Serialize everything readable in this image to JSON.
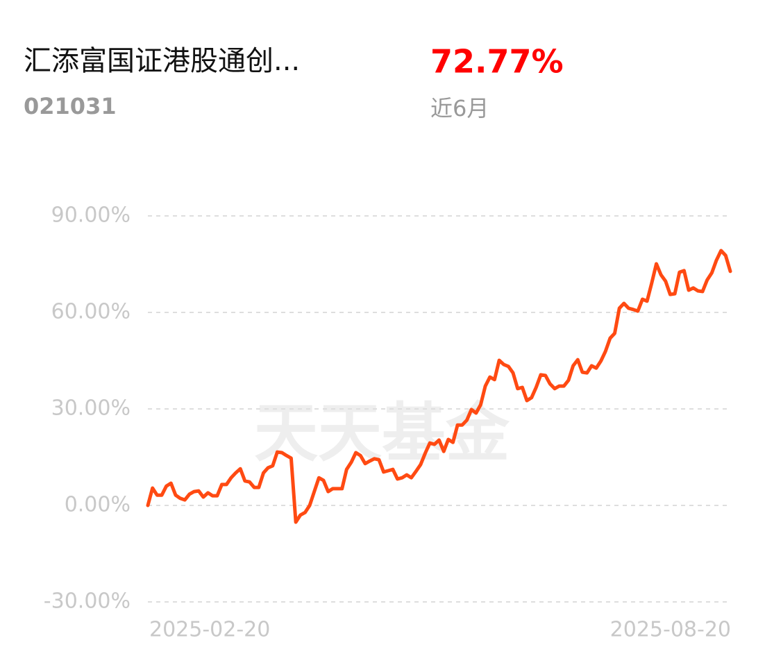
{
  "header": {
    "fund_name": "汇添富国证港股通创...",
    "fund_code": "021031",
    "return_value": "72.77%",
    "period": "近6月"
  },
  "chart_data": {
    "type": "line",
    "watermark": "天天基金",
    "categories": [
      "2025-02-20",
      null,
      null,
      null,
      null,
      null,
      null,
      null,
      null,
      null,
      null,
      null,
      null,
      null,
      null,
      null,
      null,
      null,
      null,
      null,
      null,
      null,
      null,
      null,
      null,
      null,
      null,
      null,
      null,
      null,
      null,
      null,
      null,
      null,
      null,
      null,
      null,
      null,
      null,
      null,
      null,
      null,
      null,
      null,
      null,
      null,
      null,
      null,
      null,
      null,
      null,
      null,
      null,
      null,
      null,
      null,
      null,
      null,
      null,
      null,
      null,
      null,
      null,
      null,
      null,
      null,
      null,
      null,
      null,
      null,
      null,
      null,
      null,
      null,
      null,
      null,
      null,
      null,
      null,
      null,
      null,
      null,
      null,
      null,
      null,
      null,
      null,
      null,
      null,
      null,
      null,
      null,
      null,
      null,
      null,
      null,
      null,
      null,
      null,
      null,
      null,
      null,
      null,
      null,
      null,
      null,
      null,
      null,
      null,
      null,
      null,
      null,
      null,
      null,
      null,
      null,
      null,
      null,
      null,
      null,
      null,
      null,
      null,
      null,
      null,
      null,
      "2025-08-20"
    ],
    "series": [
      {
        "color": "#ff4a12",
        "values": [
          0,
          5.4,
          3.2,
          3.2,
          6,
          6.9,
          3.2,
          2.2,
          1.7,
          3.5,
          4.3,
          4.5,
          2.6,
          3.9,
          3,
          3,
          6.5,
          6.5,
          8.6,
          10.1,
          11.4,
          7.6,
          7.3,
          5.6,
          5.6,
          10.1,
          11.7,
          12.3,
          16.6,
          16.4,
          15.5,
          14.7,
          -5.2,
          -3,
          -2.2,
          0,
          4.3,
          8.6,
          7.8,
          4.3,
          5.2,
          5.2,
          5.2,
          11.2,
          13.4,
          16.4,
          15.5,
          13,
          13.8,
          14.5,
          14.2,
          10.4,
          10.8,
          11.2,
          8.2,
          8.6,
          9.5,
          8.6,
          10.6,
          12.7,
          16.2,
          19.4,
          19,
          20.3,
          16.8,
          20.5,
          19.6,
          25,
          25,
          26.5,
          29.8,
          28.7,
          31.3,
          37.1,
          39.9,
          39.1,
          45.1,
          43.8,
          43.2,
          41.2,
          36.3,
          36.7,
          32.6,
          33.5,
          36.7,
          40.6,
          40.4,
          37.8,
          36.3,
          37.1,
          37.1,
          38.9,
          43.4,
          45.3,
          41.4,
          41.2,
          43.4,
          42.7,
          44.9,
          47.9,
          52,
          53.5,
          61.3,
          62.8,
          61.3,
          60.9,
          60.4,
          64.1,
          63.5,
          69.1,
          75.1,
          71.7,
          69.7,
          65.6,
          65.8,
          72.5,
          73,
          66.9,
          67.6,
          66.7,
          66.5,
          70.1,
          72.3,
          76.2,
          79.2,
          77.7,
          72.77
        ]
      }
    ],
    "ylim": [
      -30,
      90
    ],
    "yticks": [
      {
        "value": 90,
        "label": "90.00%"
      },
      {
        "value": 60,
        "label": "60.00%"
      },
      {
        "value": 30,
        "label": "30.00%"
      },
      {
        "value": 0,
        "label": "0.00%"
      },
      {
        "value": -30,
        "label": "-30.00%"
      }
    ],
    "grid": true
  }
}
